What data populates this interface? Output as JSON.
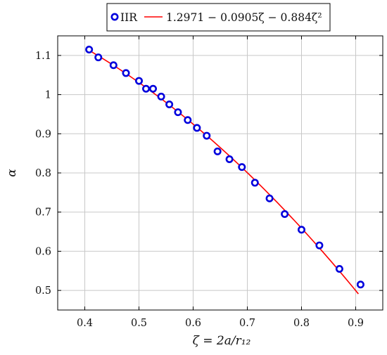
{
  "chart_data": {
    "type": "scatter",
    "title": "",
    "xlabel": "ζ = 2a/r₁₂",
    "ylabel": "α",
    "xlim": [
      0.35,
      0.95
    ],
    "ylim": [
      0.45,
      1.15
    ],
    "x_ticks": [
      0.4,
      0.5,
      0.6,
      0.7,
      0.8,
      0.9
    ],
    "x_tick_labels": [
      "0.4",
      "0.5",
      "0.6",
      "0.7",
      "0.8",
      "0.9"
    ],
    "y_ticks": [
      0.5,
      0.6,
      0.7,
      0.8,
      0.9,
      1.0,
      1.1
    ],
    "y_tick_labels": [
      "0.5",
      "0.6",
      "0.7",
      "0.8",
      "0.9",
      "1",
      "1.1"
    ],
    "grid": true,
    "legend_position": "top-center, above plot",
    "series": [
      {
        "name": "IIR",
        "type": "scatter",
        "color": "#0000dd",
        "marker": "hollow-circle",
        "x": [
          0.408,
          0.425,
          0.453,
          0.476,
          0.5,
          0.513,
          0.526,
          0.541,
          0.556,
          0.572,
          0.59,
          0.607,
          0.625,
          0.645,
          0.667,
          0.69,
          0.714,
          0.741,
          0.769,
          0.8,
          0.833,
          0.87,
          0.909
        ],
        "y": [
          1.115,
          1.095,
          1.075,
          1.055,
          1.035,
          1.015,
          1.015,
          0.995,
          0.975,
          0.955,
          0.935,
          0.915,
          0.895,
          0.855,
          0.835,
          0.815,
          0.775,
          0.735,
          0.695,
          0.655,
          0.615,
          0.555,
          0.515
        ]
      },
      {
        "name": "1.2971 − 0.0905ζ − 0.884ζ²",
        "type": "line",
        "color": "#ff0000",
        "formula": {
          "a0": 1.2971,
          "a1": -0.0905,
          "a2": -0.884
        },
        "x_range": [
          0.405,
          0.905
        ]
      }
    ],
    "legend": {
      "entries": [
        "IIR",
        "1.2971 − 0.0905ζ − 0.884ζ²"
      ]
    }
  }
}
